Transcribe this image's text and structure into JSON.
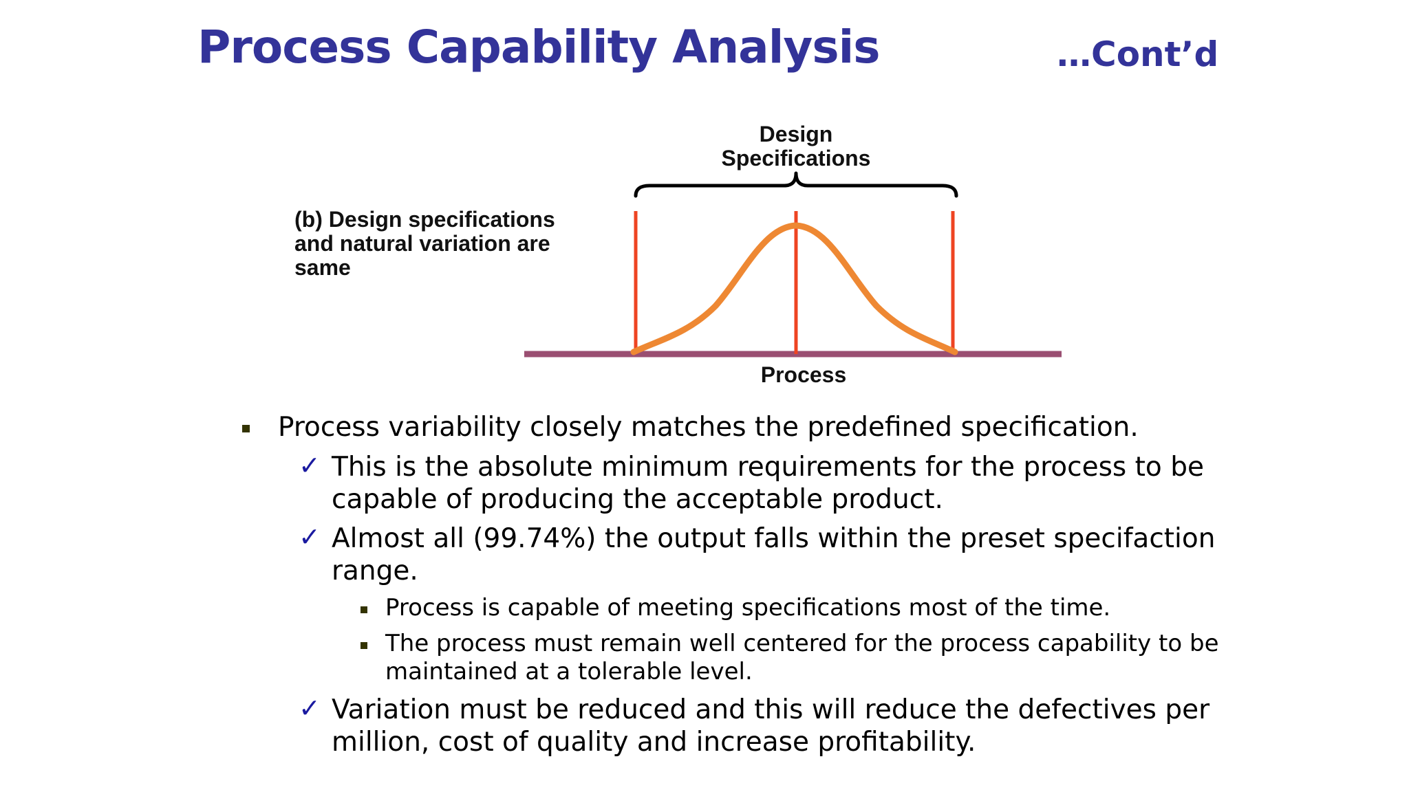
{
  "slide": {
    "title": "Process Capability Analysis",
    "subtitle": "…Cont’d"
  },
  "diagram": {
    "caption_lines": [
      "(b) Design specifications",
      "and natural variation are",
      "same"
    ],
    "spec_label_lines": [
      "Design",
      "Specifications"
    ],
    "axis_label": "Process",
    "colors": {
      "spec_lines": "#ee4422",
      "curve": "#ee8833",
      "baseline": "#9a4f72",
      "brace": "#000000"
    }
  },
  "bullets": [
    {
      "level": 1,
      "marker": "square-bullet-icon",
      "lines": [
        "Process variability closely matches the predefined specification."
      ]
    },
    {
      "level": 2,
      "marker": "checkmark-icon",
      "lines": [
        "This is the absolute minimum requirements for the process to be",
        "capable of producing the acceptable product."
      ]
    },
    {
      "level": 2,
      "marker": "checkmark-icon",
      "lines": [
        "Almost all (99.74%) the output falls within the preset specifaction",
        "range."
      ]
    },
    {
      "level": 3,
      "marker": "square-bullet-icon",
      "lines": [
        "Process is capable of meeting specifications most of the time."
      ]
    },
    {
      "level": 3,
      "marker": "square-bullet-icon",
      "lines": [
        "The process must remain well centered for the process capability to be",
        "maintained at a tolerable level."
      ]
    },
    {
      "level": 2,
      "marker": "checkmark-icon",
      "lines": [
        "Variation must be reduced and this will reduce the defectives per",
        "million, cost of quality and increase profitability."
      ]
    }
  ]
}
